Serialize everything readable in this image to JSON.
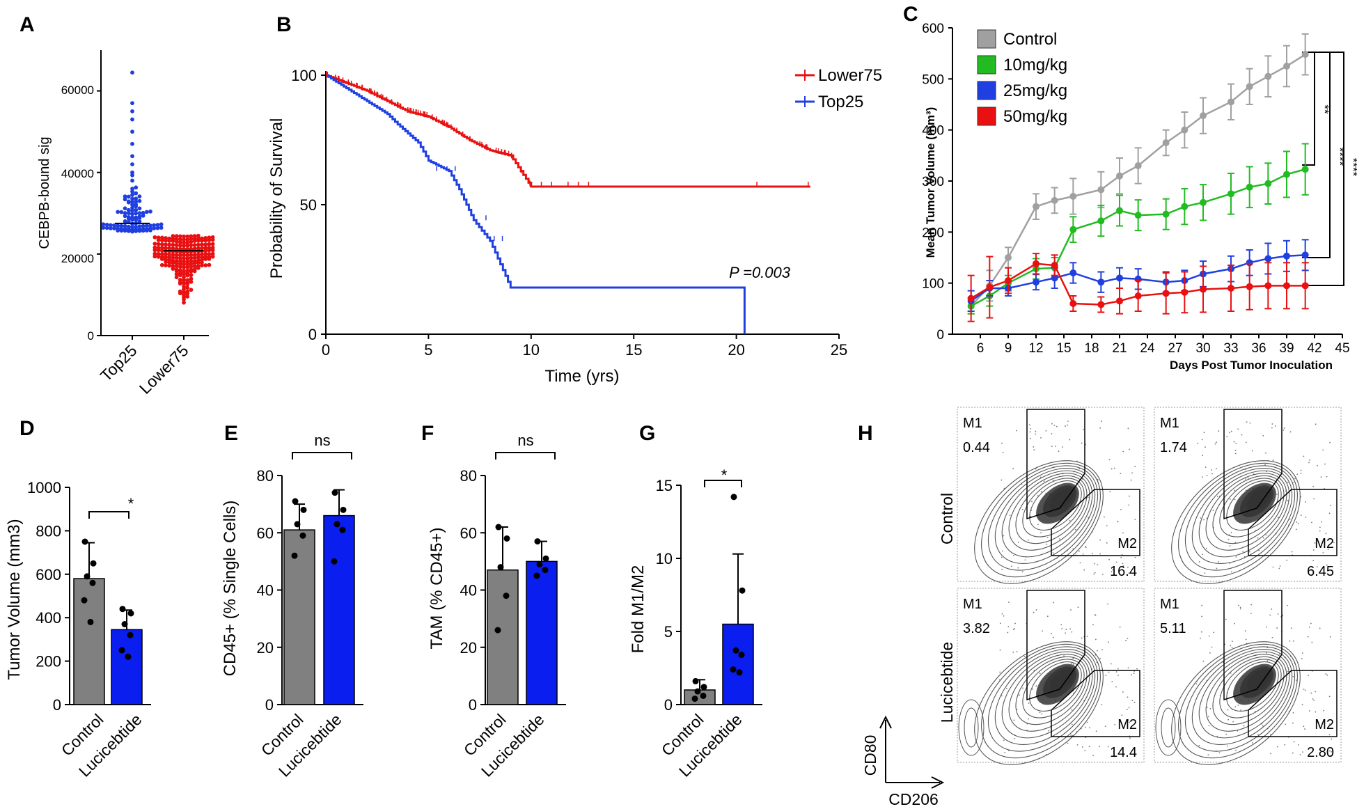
{
  "chart_data": [
    {
      "panel": "A",
      "type": "scatter",
      "ylabel": "CEBPB-bound sig",
      "ylim": [
        0,
        70000
      ],
      "yticks": [
        "0",
        "20000",
        "40000",
        "60000"
      ],
      "categories": [
        "Top25",
        "Lower75"
      ],
      "medians": [
        27500,
        20800
      ],
      "colors": [
        "#1f3fe0",
        "#e81010"
      ]
    },
    {
      "panel": "B",
      "type": "line",
      "xlabel": "Time (yrs)",
      "ylabel": "Probability of Survival",
      "xlim": [
        0,
        25
      ],
      "ylim": [
        0,
        100
      ],
      "xticks": [
        "0",
        "5",
        "10",
        "15",
        "20",
        "25"
      ],
      "yticks": [
        "0",
        "50",
        "100"
      ],
      "annotation": "P =0.003",
      "series": [
        {
          "name": "Lower75",
          "color": "#e81010",
          "x": [
            0,
            1,
            2,
            3,
            4,
            5,
            6,
            7,
            8,
            9,
            10,
            23.6
          ],
          "y": [
            100,
            97,
            94,
            90,
            86,
            84,
            80,
            75,
            71,
            69,
            57,
            57
          ]
        },
        {
          "name": "Top25",
          "color": "#1f3fe0",
          "x": [
            0,
            1,
            2,
            3,
            3.5,
            4.5,
            5,
            6,
            6.5,
            7.2,
            8,
            9,
            20.4,
            20.4
          ],
          "y": [
            100,
            95,
            90,
            85,
            81,
            74,
            67,
            63,
            56,
            44,
            36,
            18,
            18,
            0
          ]
        }
      ]
    },
    {
      "panel": "C",
      "type": "line",
      "xlabel": "Days Post Tumor Inoculation",
      "ylabel": "Mean Tumor Volume (mm³)",
      "xlim": [
        3,
        45
      ],
      "ylim": [
        0,
        600
      ],
      "xticks": [
        "6",
        "9",
        "12",
        "15",
        "18",
        "21",
        "24",
        "27",
        "30",
        "33",
        "36",
        "39",
        "42",
        "45"
      ],
      "yticks": [
        "0",
        "100",
        "200",
        "300",
        "400",
        "500",
        "600"
      ],
      "significance": [
        "**",
        "****",
        "****"
      ],
      "series": [
        {
          "name": "Control",
          "color": "#a0a0a0",
          "x": [
            5,
            7,
            9,
            12,
            14,
            16,
            19,
            21,
            23,
            26,
            28,
            30,
            33,
            35,
            37,
            39,
            41
          ],
          "y": [
            55,
            95,
            150,
            250,
            262,
            270,
            283,
            310,
            330,
            375,
            400,
            428,
            455,
            485,
            505,
            525,
            548
          ],
          "err": [
            15,
            30,
            20,
            25,
            25,
            35,
            35,
            35,
            35,
            25,
            35,
            35,
            35,
            35,
            40,
            40,
            40
          ]
        },
        {
          "name": "10mg/kg",
          "color": "#22bb22",
          "x": [
            5,
            7,
            9,
            12,
            14,
            16,
            19,
            21,
            23,
            26,
            28,
            30,
            33,
            35,
            37,
            39,
            41
          ],
          "y": [
            55,
            75,
            100,
            128,
            130,
            205,
            222,
            242,
            233,
            235,
            250,
            258,
            275,
            288,
            295,
            313,
            323
          ],
          "err": [
            15,
            20,
            15,
            20,
            20,
            25,
            30,
            30,
            30,
            30,
            35,
            35,
            40,
            40,
            40,
            45,
            50
          ]
        },
        {
          "name": "25mg/kg",
          "color": "#1f3fe0",
          "x": [
            5,
            7,
            9,
            12,
            14,
            16,
            19,
            21,
            23,
            26,
            28,
            30,
            33,
            35,
            37,
            39,
            41
          ],
          "y": [
            65,
            90,
            90,
            102,
            110,
            120,
            102,
            110,
            108,
            102,
            105,
            118,
            128,
            140,
            148,
            153,
            155
          ],
          "err": [
            20,
            15,
            15,
            15,
            20,
            20,
            20,
            20,
            20,
            20,
            20,
            25,
            25,
            25,
            30,
            30,
            30
          ]
        },
        {
          "name": "50mg/kg",
          "color": "#e81010",
          "x": [
            5,
            7,
            9,
            12,
            14,
            16,
            19,
            21,
            23,
            26,
            28,
            30,
            33,
            35,
            37,
            39,
            41
          ],
          "y": [
            70,
            92,
            105,
            138,
            135,
            60,
            58,
            65,
            75,
            80,
            82,
            88,
            90,
            93,
            95,
            95,
            95
          ],
          "err": [
            45,
            60,
            25,
            20,
            20,
            15,
            15,
            25,
            30,
            40,
            40,
            45,
            45,
            45,
            45,
            45,
            45
          ]
        }
      ]
    },
    {
      "panel": "D",
      "type": "bar",
      "ylabel": "Tumor Volume (mm3)",
      "ylim": [
        0,
        1000
      ],
      "yticks": [
        "0",
        "200",
        "400",
        "600",
        "800",
        "1000"
      ],
      "categories": [
        "Control",
        "Lucicebtide"
      ],
      "values": [
        580,
        345
      ],
      "errors": [
        165,
        90
      ],
      "points": [
        [
          750,
          650,
          590,
          560,
          480,
          380
        ],
        [
          440,
          420,
          370,
          320,
          250,
          220
        ]
      ],
      "significance": "*"
    },
    {
      "panel": "E",
      "type": "bar",
      "ylabel": "CD45+ (% Single Cells)",
      "ylim": [
        0,
        80
      ],
      "yticks": [
        "0",
        "20",
        "40",
        "60",
        "80"
      ],
      "categories": [
        "Control",
        "Lucicebtide"
      ],
      "values": [
        61,
        66
      ],
      "errors": [
        9,
        9
      ],
      "points": [
        [
          71,
          68,
          63,
          59,
          52
        ],
        [
          74,
          68,
          63,
          61,
          50
        ]
      ],
      "significance": "ns"
    },
    {
      "panel": "F",
      "type": "bar",
      "ylabel": "TAM (% CD45+)",
      "ylim": [
        0,
        80
      ],
      "yticks": [
        "0",
        "20",
        "40",
        "60",
        "80"
      ],
      "categories": [
        "Control",
        "Lucicebtide"
      ],
      "values": [
        47,
        50
      ],
      "errors": [
        15,
        7
      ],
      "points": [
        [
          62,
          58,
          48,
          38,
          26
        ],
        [
          57,
          51,
          49,
          47,
          45
        ]
      ],
      "significance": "ns"
    },
    {
      "panel": "G",
      "type": "bar",
      "ylabel": "Fold M1/M2",
      "ylim": [
        0,
        15
      ],
      "yticks": [
        "0",
        "5",
        "10",
        "15"
      ],
      "categories": [
        "Control",
        "Lucicebtide"
      ],
      "values": [
        1.0,
        5.5
      ],
      "errors": [
        0.7,
        4.8
      ],
      "points": [
        [
          1.6,
          1.2,
          0.9,
          0.6,
          0.4
        ],
        [
          14.2,
          7.8,
          3.7,
          3.4,
          2.4,
          2.2
        ]
      ],
      "significance": "*"
    }
  ],
  "panel_labels": [
    "A",
    "B",
    "C",
    "D",
    "E",
    "F",
    "G",
    "H"
  ],
  "flow": {
    "row_labels": [
      "Control",
      "Lucicebtide"
    ],
    "axis_y": "CD80",
    "axis_x": "CD206",
    "plots": [
      {
        "m1_label": "M1",
        "m1_value": "0.44",
        "m2_label": "M2",
        "m2_value": "16.4"
      },
      {
        "m1_label": "M1",
        "m1_value": "1.74",
        "m2_label": "M2",
        "m2_value": "6.45"
      },
      {
        "m1_label": "M1",
        "m1_value": "3.82",
        "m2_label": "M2",
        "m2_value": "14.4"
      },
      {
        "m1_label": "M1",
        "m1_value": "5.11",
        "m2_label": "M2",
        "m2_value": "2.80"
      }
    ]
  }
}
